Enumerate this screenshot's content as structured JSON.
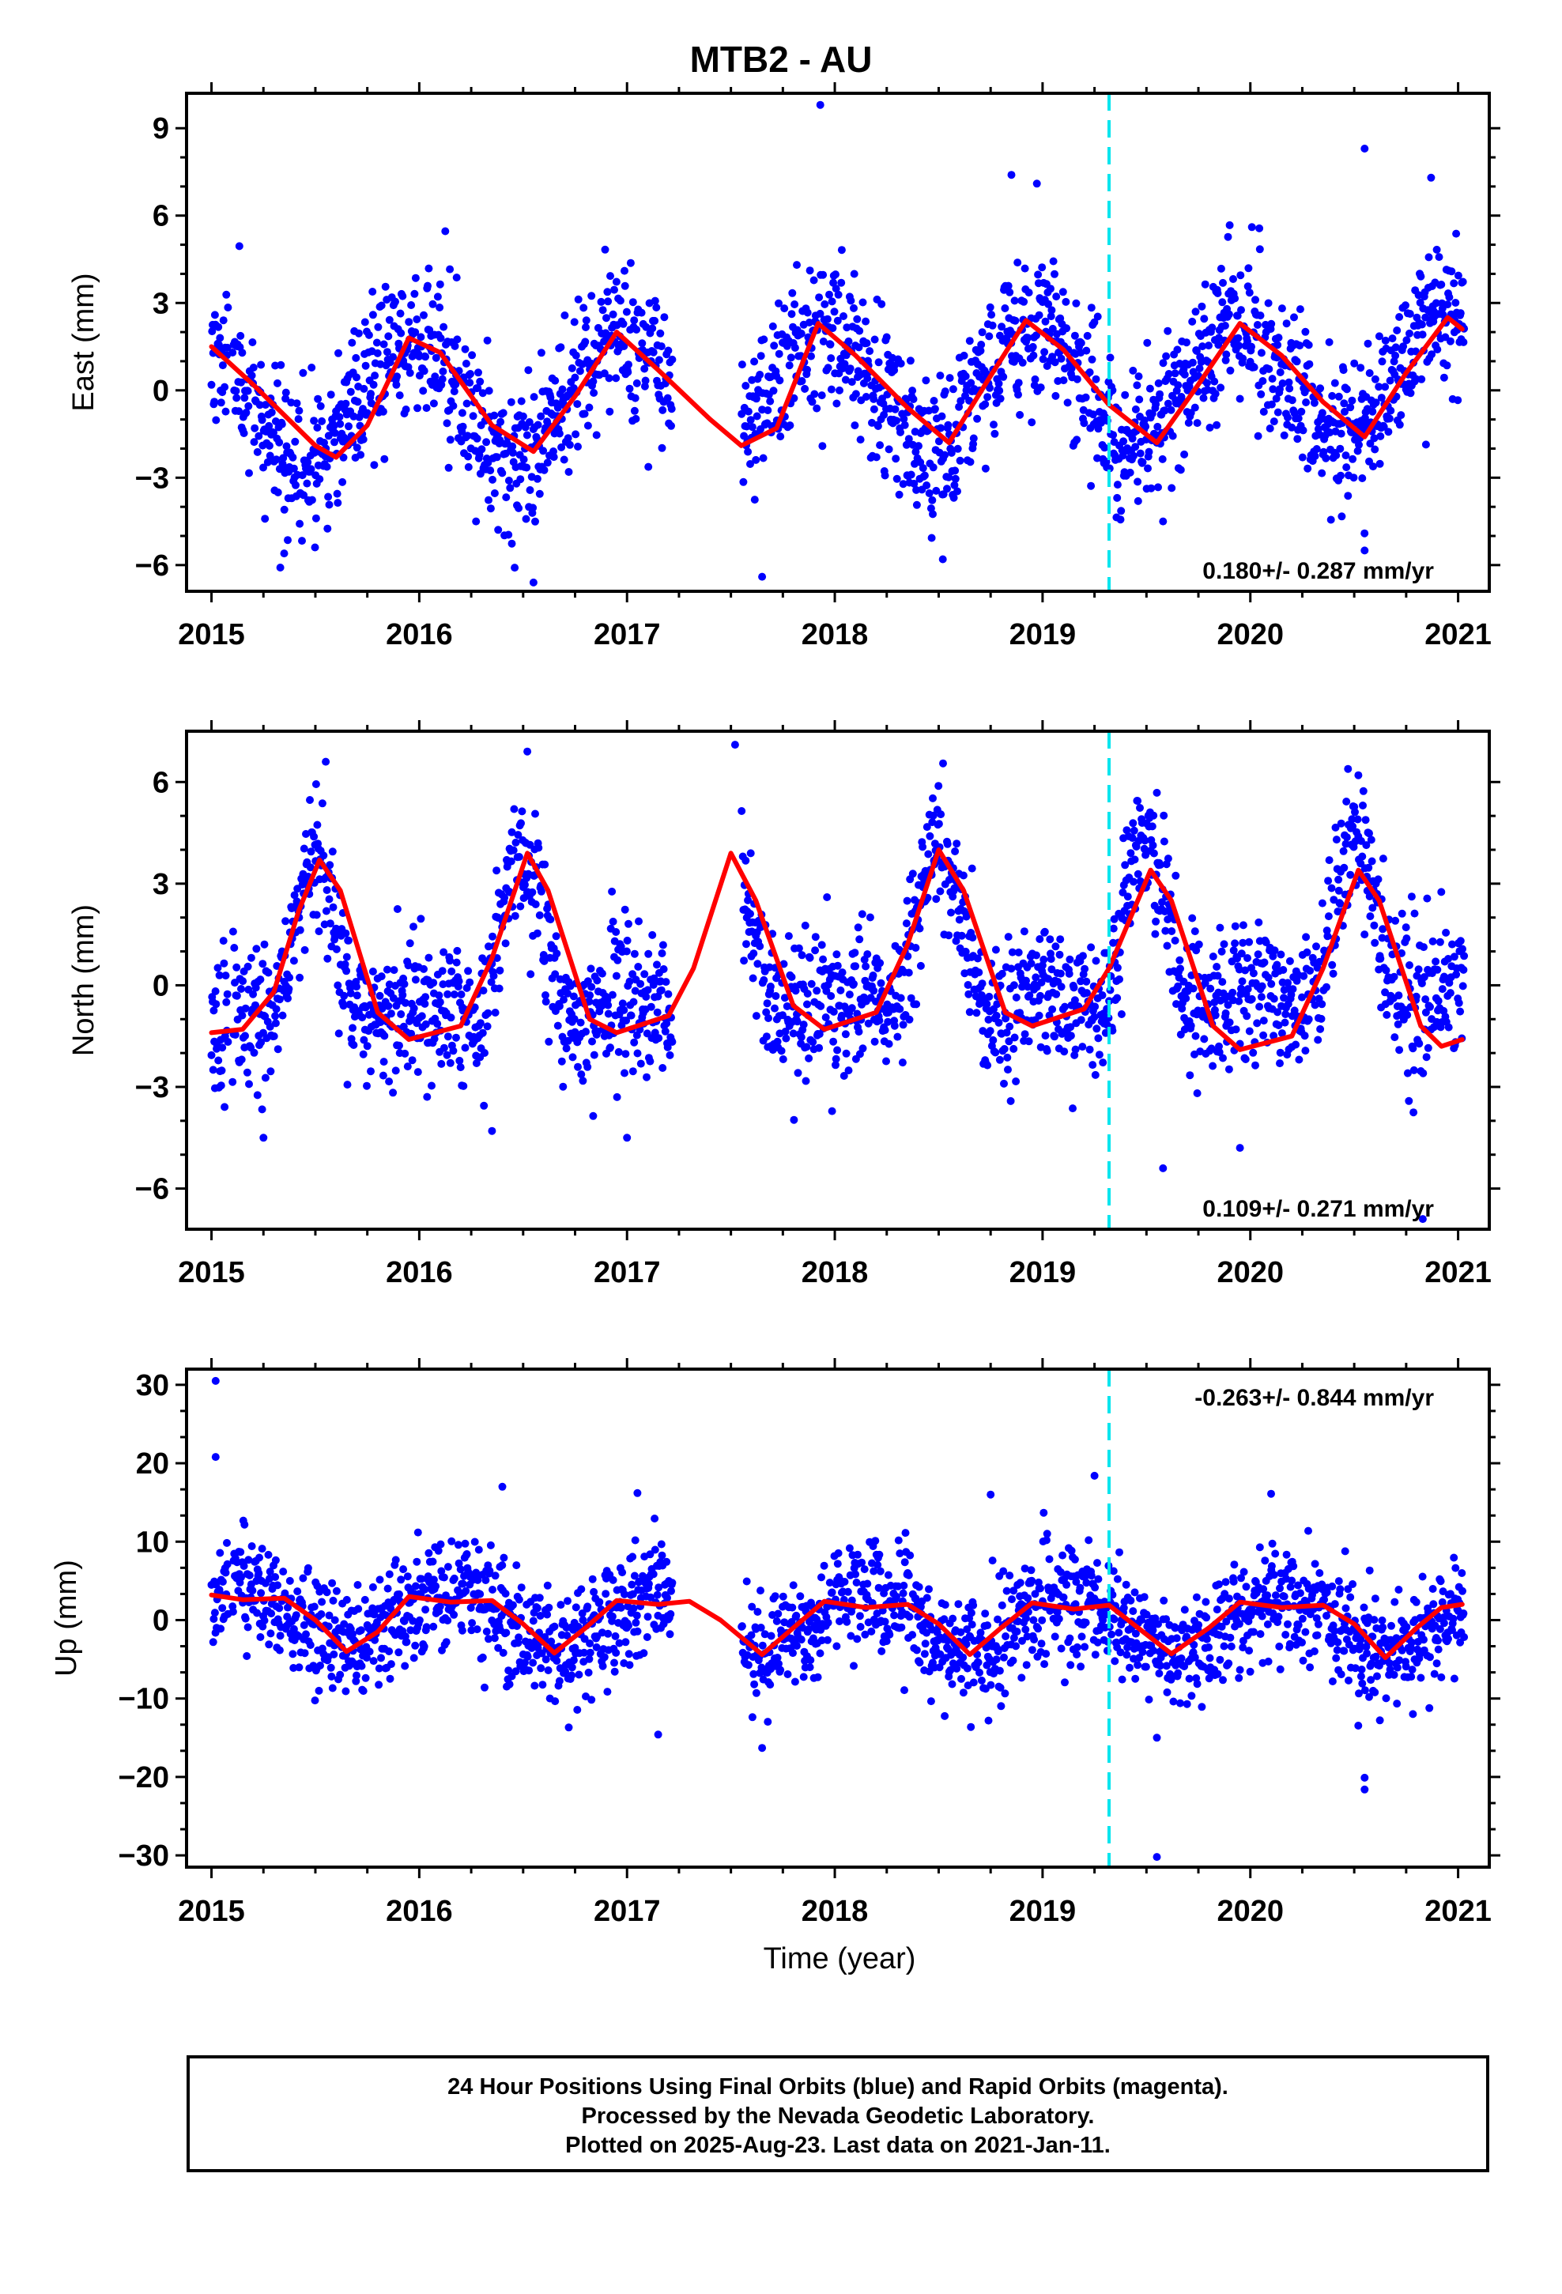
{
  "title": "MTB2 - AU",
  "footer": {
    "line1": "24 Hour Positions Using Final Orbits (blue) and Rapid Orbits (magenta).",
    "line2": "Processed by the Nevada Geodetic Laboratory.",
    "line3": "Plotted on 2025-Aug-23. Last data on 2021-Jan-11."
  },
  "colors": {
    "points": "#0000ff",
    "model": "#ff0000",
    "equipment_change": "#00e5ee"
  },
  "chart_data": [
    {
      "type": "scatter",
      "component": "East",
      "ylabel": "East (mm)",
      "xlabel": "",
      "xlim": [
        2014.88,
        2021.15
      ],
      "ylim": [
        -6.9,
        10.2
      ],
      "xticks": [
        2015,
        2016,
        2017,
        2018,
        2019,
        2020,
        2021
      ],
      "yticks": [
        -6,
        -3,
        0,
        3,
        6,
        9
      ],
      "equipment_change_x": 2019.32,
      "rate_label": "0.180+/- 0.287 mm/yr",
      "rate_position": "bottom-right",
      "series": [
        {
          "name": "",
          "kind": "points",
          "color": "#0000ff",
          "model": {
            "offset": 0.02,
            "rate": 0.18,
            "t0": 2018.0,
            "annual_amp": 2.05,
            "annual_peak": 2017.95,
            "noise_sd": 1.3,
            "seed": 11
          },
          "outliers": [
            [
              2017.93,
              9.8
            ],
            [
              2018.85,
              7.4
            ],
            [
              2020.55,
              8.3
            ],
            [
              2020.87,
              7.3
            ],
            [
              2016.55,
              -6.6
            ],
            [
              2017.65,
              -6.4
            ],
            [
              2018.52,
              -5.8
            ],
            [
              2015.35,
              -5.6
            ],
            [
              2019.58,
              -4.5
            ],
            [
              2020.55,
              -5.5
            ]
          ]
        },
        {
          "name": "",
          "kind": "line",
          "color": "#ff0000",
          "points": [
            [
              2015.0,
              1.5
            ],
            [
              2015.2,
              0.2
            ],
            [
              2015.5,
              -1.9
            ],
            [
              2015.6,
              -2.3
            ],
            [
              2015.75,
              -1.2
            ],
            [
              2015.95,
              1.8
            ],
            [
              2016.1,
              1.3
            ],
            [
              2016.35,
              -1.2
            ],
            [
              2016.55,
              -2.1
            ],
            [
              2016.75,
              -0.2
            ],
            [
              2016.95,
              2.0
            ],
            [
              2017.15,
              0.7
            ],
            [
              2017.4,
              -1.0
            ],
            [
              2017.55,
              -1.9
            ],
            [
              2017.72,
              -1.3
            ],
            [
              2017.92,
              2.3
            ],
            [
              2018.1,
              1.2
            ],
            [
              2018.35,
              -0.6
            ],
            [
              2018.55,
              -1.8
            ],
            [
              2018.75,
              0.5
            ],
            [
              2018.92,
              2.4
            ],
            [
              2019.1,
              1.4
            ],
            [
              2019.32,
              -0.5
            ],
            [
              2019.55,
              -1.8
            ],
            [
              2019.75,
              0.2
            ],
            [
              2019.95,
              2.3
            ],
            [
              2020.15,
              1.2
            ],
            [
              2020.35,
              -0.4
            ],
            [
              2020.55,
              -1.6
            ],
            [
              2020.75,
              0.6
            ],
            [
              2020.95,
              2.5
            ],
            [
              2021.02,
              2.1
            ]
          ]
        }
      ]
    },
    {
      "type": "scatter",
      "component": "North",
      "ylabel": "North (mm)",
      "xlabel": "",
      "xlim": [
        2014.88,
        2021.15
      ],
      "ylim": [
        -7.2,
        7.5
      ],
      "xticks": [
        2015,
        2016,
        2017,
        2018,
        2019,
        2020,
        2021
      ],
      "yticks": [
        -6,
        -3,
        0,
        3,
        6
      ],
      "equipment_change_x": 2019.32,
      "rate_label": "0.109+/- 0.271 mm/yr",
      "rate_position": "bottom-right",
      "series": [
        {
          "name": "",
          "kind": "points",
          "color": "#0000ff",
          "model": {
            "offset": 0.4,
            "rate": 0.109,
            "t0": 2018.0,
            "annual_amp": 2.6,
            "annual_peak": 2017.5,
            "sharp": true,
            "noise_sd": 1.05,
            "seed": 23
          },
          "outliers": [
            [
              2017.52,
              7.1
            ],
            [
              2016.52,
              6.9
            ],
            [
              2015.55,
              6.6
            ],
            [
              2020.52,
              6.2
            ],
            [
              2015.25,
              -4.5
            ],
            [
              2016.35,
              -4.3
            ],
            [
              2019.58,
              -5.4
            ],
            [
              2019.95,
              -4.8
            ],
            [
              2017.0,
              -4.5
            ],
            [
              2020.83,
              -6.9
            ]
          ]
        },
        {
          "name": "",
          "kind": "line",
          "color": "#ff0000",
          "points": [
            [
              2015.0,
              -1.4
            ],
            [
              2015.15,
              -1.3
            ],
            [
              2015.3,
              -0.2
            ],
            [
              2015.42,
              2.2
            ],
            [
              2015.52,
              3.7
            ],
            [
              2015.62,
              2.8
            ],
            [
              2015.8,
              -0.8
            ],
            [
              2015.95,
              -1.6
            ],
            [
              2016.2,
              -1.2
            ],
            [
              2016.35,
              0.8
            ],
            [
              2016.52,
              3.9
            ],
            [
              2016.62,
              2.8
            ],
            [
              2016.82,
              -1.0
            ],
            [
              2016.95,
              -1.4
            ],
            [
              2017.2,
              -0.9
            ],
            [
              2017.32,
              0.5
            ],
            [
              2017.5,
              3.9
            ],
            [
              2017.62,
              2.5
            ],
            [
              2017.8,
              -0.6
            ],
            [
              2017.95,
              -1.3
            ],
            [
              2018.2,
              -0.8
            ],
            [
              2018.35,
              1.2
            ],
            [
              2018.5,
              4.0
            ],
            [
              2018.62,
              2.8
            ],
            [
              2018.82,
              -0.8
            ],
            [
              2018.95,
              -1.2
            ],
            [
              2019.2,
              -0.7
            ],
            [
              2019.32,
              0.5
            ],
            [
              2019.52,
              3.4
            ],
            [
              2019.62,
              2.5
            ],
            [
              2019.82,
              -1.2
            ],
            [
              2019.95,
              -1.9
            ],
            [
              2020.2,
              -1.5
            ],
            [
              2020.35,
              0.5
            ],
            [
              2020.52,
              3.4
            ],
            [
              2020.62,
              2.5
            ],
            [
              2020.82,
              -1.2
            ],
            [
              2020.92,
              -1.8
            ],
            [
              2021.02,
              -1.6
            ]
          ]
        }
      ]
    },
    {
      "type": "scatter",
      "component": "Up",
      "ylabel": "Up (mm)",
      "xlabel": "Time (year)",
      "xlim": [
        2014.88,
        2021.15
      ],
      "ylim": [
        -31.5,
        32.0
      ],
      "xticks": [
        2015,
        2016,
        2017,
        2018,
        2019,
        2020,
        2021
      ],
      "yticks": [
        -30,
        -20,
        -10,
        0,
        10,
        20,
        30
      ],
      "equipment_change_x": 2019.32,
      "rate_label": "-0.263+/- 0.844 mm/yr",
      "rate_position": "top-right",
      "series": [
        {
          "name": "",
          "kind": "points",
          "color": "#0000ff",
          "model": {
            "offset": -0.3,
            "rate": -0.263,
            "t0": 2018.0,
            "annual_amp": 3.5,
            "annual_peak": 2018.15,
            "noise_sd": 3.6,
            "seed": 37
          },
          "outliers": [
            [
              2015.02,
              30.5
            ],
            [
              2015.02,
              20.8
            ],
            [
              2017.05,
              16.2
            ],
            [
              2018.75,
              16.0
            ],
            [
              2019.25,
              18.4
            ],
            [
              2020.1,
              16.1
            ],
            [
              2016.4,
              17.0
            ],
            [
              2017.65,
              -16.3
            ],
            [
              2017.15,
              -14.6
            ],
            [
              2019.55,
              -15.0
            ],
            [
              2020.55,
              -20.1
            ],
            [
              2020.55,
              -21.6
            ],
            [
              2019.55,
              -30.2
            ]
          ]
        },
        {
          "name": "",
          "kind": "line",
          "color": "#ff0000",
          "points": [
            [
              2015.0,
              3.2
            ],
            [
              2015.15,
              2.6
            ],
            [
              2015.35,
              2.8
            ],
            [
              2015.5,
              0.0
            ],
            [
              2015.65,
              -4.0
            ],
            [
              2015.8,
              -1.5
            ],
            [
              2015.95,
              3.0
            ],
            [
              2016.15,
              2.3
            ],
            [
              2016.35,
              2.5
            ],
            [
              2016.5,
              -0.5
            ],
            [
              2016.65,
              -4.2
            ],
            [
              2016.8,
              -1.0
            ],
            [
              2016.95,
              2.5
            ],
            [
              2017.15,
              2.0
            ],
            [
              2017.3,
              2.4
            ],
            [
              2017.45,
              0.0
            ],
            [
              2017.65,
              -4.4
            ],
            [
              2017.8,
              -1.0
            ],
            [
              2017.95,
              2.4
            ],
            [
              2018.15,
              1.6
            ],
            [
              2018.35,
              2.0
            ],
            [
              2018.5,
              -0.5
            ],
            [
              2018.65,
              -4.4
            ],
            [
              2018.8,
              -1.0
            ],
            [
              2018.95,
              2.2
            ],
            [
              2019.15,
              1.4
            ],
            [
              2019.32,
              1.9
            ],
            [
              2019.45,
              -0.8
            ],
            [
              2019.62,
              -4.3
            ],
            [
              2019.8,
              -1.0
            ],
            [
              2019.95,
              2.3
            ],
            [
              2020.15,
              1.6
            ],
            [
              2020.35,
              1.9
            ],
            [
              2020.5,
              -0.5
            ],
            [
              2020.65,
              -4.8
            ],
            [
              2020.8,
              -1.0
            ],
            [
              2020.92,
              1.6
            ],
            [
              2021.02,
              2.0
            ]
          ]
        }
      ]
    }
  ]
}
